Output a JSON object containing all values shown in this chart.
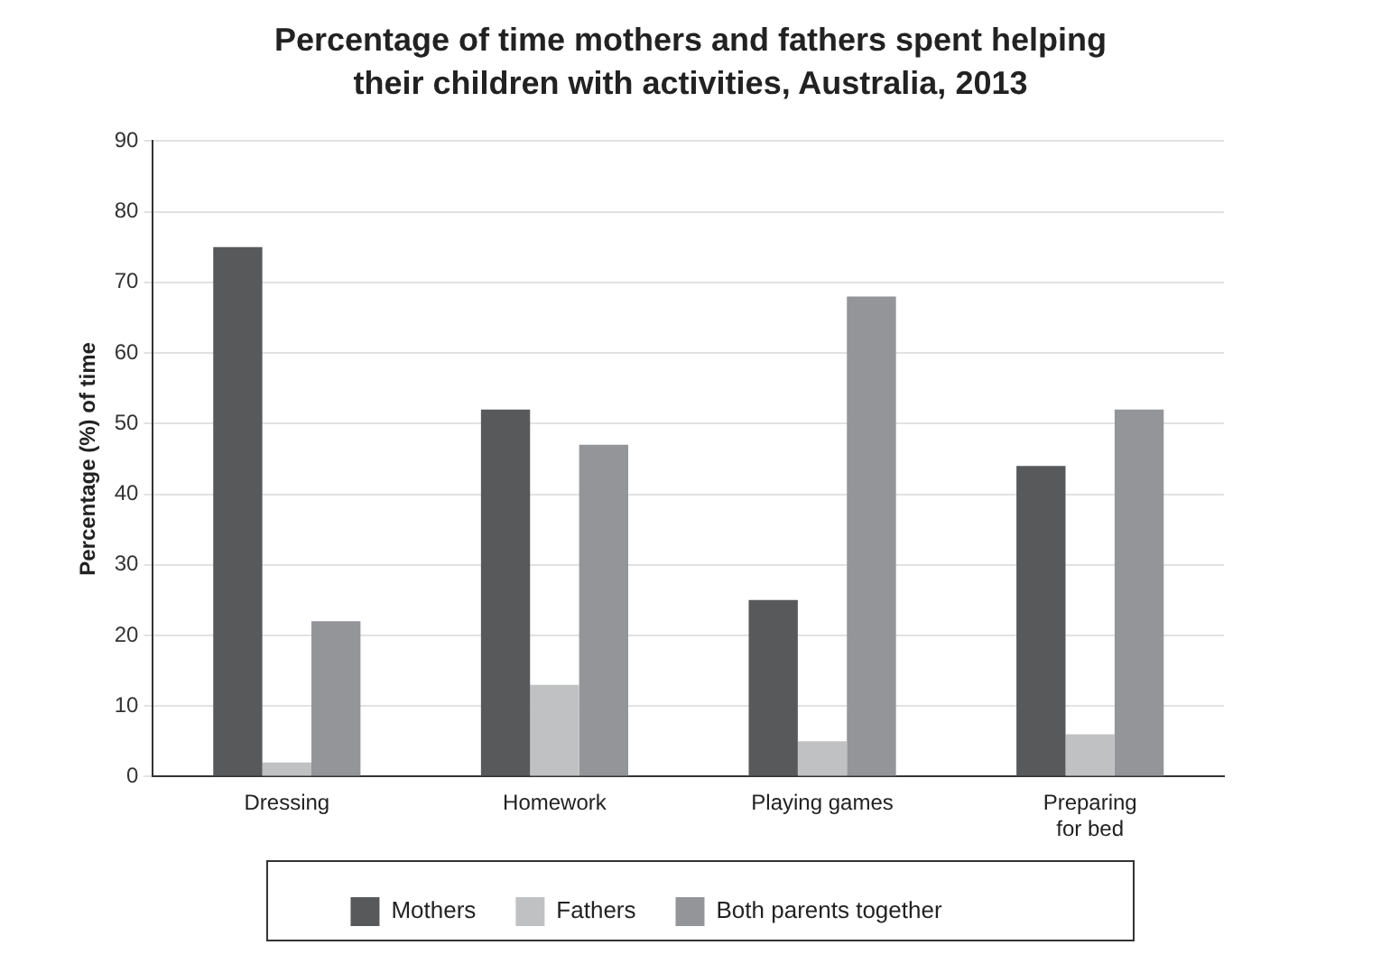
{
  "chart_data": {
    "type": "bar",
    "title": "Percentage of time mothers and fathers spent helping their children with activities, Australia, 2013",
    "ylabel": "Percentage (%) of time",
    "categories": [
      "Dressing",
      "Homework",
      "Playing games",
      "Preparing for bed"
    ],
    "series": [
      {
        "name": "Mothers",
        "color": "#58595b",
        "values": [
          75,
          52,
          25,
          44
        ]
      },
      {
        "name": "Fathers",
        "color": "#c0c1c3",
        "values": [
          2,
          13,
          5,
          6
        ]
      },
      {
        "name": "Both parents together",
        "color": "#939598",
        "values": [
          22,
          47,
          68,
          52
        ]
      }
    ],
    "ylim": [
      0,
      90
    ],
    "yticks": [
      0,
      10,
      20,
      30,
      40,
      50,
      60,
      70,
      80,
      90
    ],
    "grid": "y",
    "legend": "bottom"
  }
}
